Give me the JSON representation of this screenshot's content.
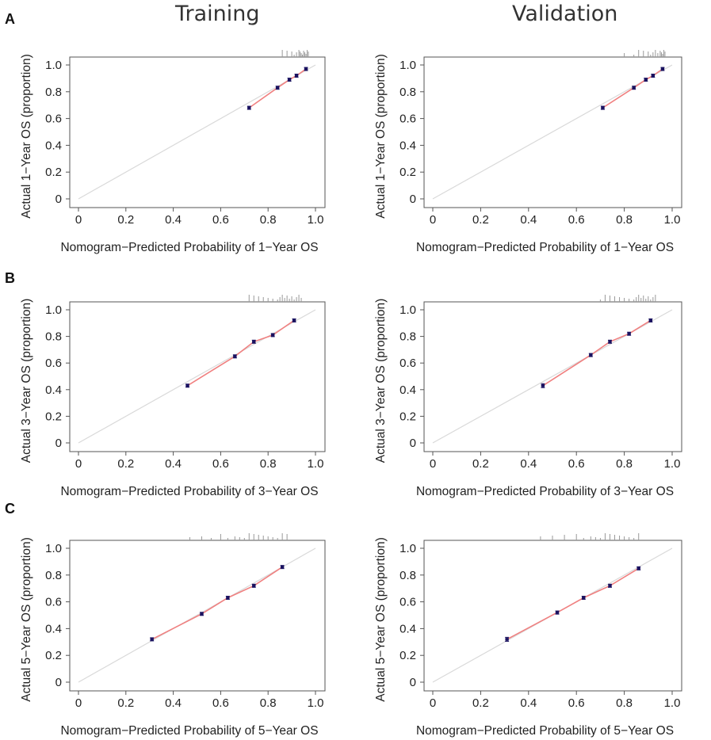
{
  "column_titles": [
    "Training",
    "Validation"
  ],
  "row_labels": [
    "A",
    "B",
    "C"
  ],
  "colors": {
    "ideal_line": "#d9d9d9",
    "calibration_line": "#f08080",
    "point": "#1a1260",
    "rug": "#999999",
    "axis": "#555555"
  },
  "chart_data": [
    {
      "type": "line",
      "panel": "A-Training",
      "xlabel": "Nomogram−Predicted Probability of 1−Year OS",
      "ylabel": "Actual 1−Year OS (proportion)",
      "xlim": [
        0,
        1.0
      ],
      "ylim": [
        0,
        1.0
      ],
      "x_ticks": [
        "0",
        "0.2",
        "0.4",
        "0.6",
        "0.8",
        "1.0"
      ],
      "y_ticks": [
        "0",
        "0.2",
        "0.4",
        "0.6",
        "0.8",
        "1.0"
      ],
      "series": [
        {
          "x": [
            0.72,
            0.84,
            0.89,
            0.92,
            0.96
          ],
          "y": [
            0.68,
            0.83,
            0.89,
            0.92,
            0.97
          ],
          "err": [
            0.005,
            0.005,
            0.005,
            0.005,
            0.005
          ]
        }
      ],
      "rug": [
        0.86,
        0.88,
        0.9,
        0.91,
        0.92,
        0.93,
        0.935,
        0.94,
        0.945,
        0.95,
        0.955,
        0.96,
        0.965,
        0.97
      ]
    },
    {
      "type": "line",
      "panel": "A-Validation",
      "xlabel": "Nomogram−Predicted Probability of 1−Year OS",
      "ylabel": "Actual 1−Year OS (proportion)",
      "xlim": [
        0,
        1.0
      ],
      "ylim": [
        0,
        1.0
      ],
      "x_ticks": [
        "0",
        "0.2",
        "0.4",
        "0.6",
        "0.8",
        "1.0"
      ],
      "y_ticks": [
        "0",
        "0.2",
        "0.4",
        "0.6",
        "0.8",
        "1.0"
      ],
      "series": [
        {
          "x": [
            0.71,
            0.84,
            0.89,
            0.92,
            0.96
          ],
          "y": [
            0.68,
            0.83,
            0.89,
            0.92,
            0.97
          ],
          "err": [
            0.012,
            0.008,
            0.008,
            0.006,
            0.005
          ]
        }
      ],
      "rug": [
        0.8,
        0.84,
        0.86,
        0.88,
        0.9,
        0.91,
        0.92,
        0.93,
        0.94,
        0.95,
        0.955,
        0.96,
        0.965,
        0.97
      ]
    },
    {
      "type": "line",
      "panel": "B-Training",
      "xlabel": "Nomogram−Predicted Probability of 3−Year OS",
      "ylabel": "Actual 3−Year OS (proportion)",
      "xlim": [
        0,
        1.0
      ],
      "ylim": [
        0,
        1.0
      ],
      "x_ticks": [
        "0",
        "0.2",
        "0.4",
        "0.6",
        "0.8",
        "1.0"
      ],
      "y_ticks": [
        "0",
        "0.2",
        "0.4",
        "0.6",
        "0.8",
        "1.0"
      ],
      "series": [
        {
          "x": [
            0.46,
            0.66,
            0.74,
            0.82,
            0.91
          ],
          "y": [
            0.43,
            0.65,
            0.76,
            0.81,
            0.92
          ],
          "err": [
            0.006,
            0.005,
            0.005,
            0.005,
            0.005
          ]
        }
      ],
      "rug": [
        0.72,
        0.74,
        0.76,
        0.78,
        0.8,
        0.82,
        0.84,
        0.85,
        0.86,
        0.87,
        0.88,
        0.89,
        0.9,
        0.91,
        0.92,
        0.93,
        0.94
      ]
    },
    {
      "type": "line",
      "panel": "B-Validation",
      "xlabel": "Nomogram−Predicted Probability of 3−Year OS",
      "ylabel": "Actual 3−Year OS (proportion)",
      "xlim": [
        0,
        1.0
      ],
      "ylim": [
        0,
        1.0
      ],
      "x_ticks": [
        "0",
        "0.2",
        "0.4",
        "0.6",
        "0.8",
        "1.0"
      ],
      "y_ticks": [
        "0",
        "0.2",
        "0.4",
        "0.6",
        "0.8",
        "1.0"
      ],
      "series": [
        {
          "x": [
            0.46,
            0.66,
            0.74,
            0.82,
            0.91
          ],
          "y": [
            0.43,
            0.66,
            0.76,
            0.82,
            0.92
          ],
          "err": [
            0.015,
            0.012,
            0.01,
            0.008,
            0.006
          ]
        }
      ],
      "rug": [
        0.7,
        0.72,
        0.74,
        0.76,
        0.78,
        0.8,
        0.82,
        0.84,
        0.85,
        0.86,
        0.87,
        0.88,
        0.89,
        0.9,
        0.91,
        0.92,
        0.93
      ]
    },
    {
      "type": "line",
      "panel": "C-Training",
      "xlabel": "Nomogram−Predicted Probability of 5−Year OS",
      "ylabel": "Actual 5−Year OS (proportion)",
      "xlim": [
        0,
        1.0
      ],
      "ylim": [
        0,
        1.0
      ],
      "x_ticks": [
        "0",
        "0.2",
        "0.4",
        "0.6",
        "0.8",
        "1.0"
      ],
      "y_ticks": [
        "0",
        "0.2",
        "0.4",
        "0.6",
        "0.8",
        "1.0"
      ],
      "series": [
        {
          "x": [
            0.31,
            0.52,
            0.63,
            0.74,
            0.86
          ],
          "y": [
            0.32,
            0.51,
            0.63,
            0.72,
            0.86
          ],
          "err": [
            0.006,
            0.006,
            0.005,
            0.005,
            0.005
          ]
        }
      ],
      "rug": [
        0.47,
        0.52,
        0.56,
        0.6,
        0.63,
        0.66,
        0.68,
        0.7,
        0.72,
        0.74,
        0.76,
        0.78,
        0.8,
        0.82,
        0.84,
        0.86,
        0.88
      ]
    },
    {
      "type": "line",
      "panel": "C-Validation",
      "xlabel": "Nomogram−Predicted Probability of 5−Year OS",
      "ylabel": "Actual 5−Year OS (proportion)",
      "xlim": [
        0,
        1.0
      ],
      "ylim": [
        0,
        1.0
      ],
      "x_ticks": [
        "0",
        "0.2",
        "0.4",
        "0.6",
        "0.8",
        "1.0"
      ],
      "y_ticks": [
        "0",
        "0.2",
        "0.4",
        "0.6",
        "0.8",
        "1.0"
      ],
      "series": [
        {
          "x": [
            0.31,
            0.52,
            0.63,
            0.74,
            0.86
          ],
          "y": [
            0.32,
            0.52,
            0.63,
            0.72,
            0.85
          ],
          "err": [
            0.015,
            0.012,
            0.01,
            0.01,
            0.008
          ]
        }
      ],
      "rug": [
        0.45,
        0.5,
        0.55,
        0.6,
        0.63,
        0.66,
        0.68,
        0.7,
        0.72,
        0.74,
        0.76,
        0.78,
        0.8,
        0.82,
        0.84,
        0.86
      ]
    }
  ]
}
